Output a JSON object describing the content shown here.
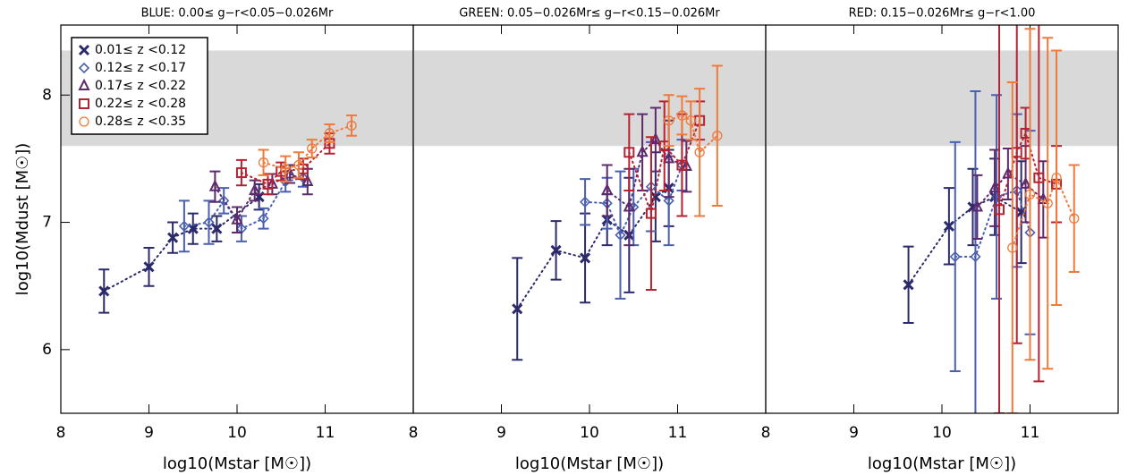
{
  "chart_data": [
    {
      "type": "scatter",
      "title": "BLUE: 0.00≤ g−r<0.05−0.026Mr",
      "xlabel": "log10(Mstar [M☉])",
      "ylabel": "log10(Mdust [M☉])",
      "xlim": [
        8,
        12
      ],
      "ylim": [
        5.5,
        8.55
      ],
      "xticks": [
        8,
        9,
        10,
        11
      ],
      "yticks": [
        6,
        7,
        8
      ],
      "shade_ylim": [
        7.6,
        8.35
      ],
      "legend": "upper left",
      "linestyle": "dotted",
      "series": [
        {
          "name": "0.01≤ z <0.12",
          "color": "#2b2a6b",
          "marker": "x",
          "x": [
            8.49,
            9.0,
            9.27,
            9.5,
            9.77,
            10.25
          ],
          "values": [
            6.46,
            6.65,
            6.88,
            6.95,
            6.95,
            7.2
          ],
          "errors": [
            0.17,
            0.15,
            0.12,
            0.12,
            0.1,
            0.1
          ]
        },
        {
          "name": "0.12≤ z <0.17",
          "color": "#4a5fb0",
          "marker": "diamond",
          "x": [
            9.4,
            9.68,
            9.85,
            10.05,
            10.3,
            10.55,
            10.75
          ],
          "values": [
            6.97,
            7.0,
            7.17,
            6.95,
            7.03,
            7.32,
            7.35
          ],
          "errors": [
            0.2,
            0.17,
            0.1,
            0.1,
            0.08,
            0.08,
            0.07
          ]
        },
        {
          "name": "0.17≤ z <0.22",
          "color": "#5e2a6e",
          "marker": "triangle",
          "x": [
            9.75,
            10.0,
            10.2,
            10.4,
            10.6,
            10.8
          ],
          "values": [
            7.28,
            7.02,
            7.25,
            7.3,
            7.38,
            7.32
          ],
          "errors": [
            0.12,
            0.1,
            0.08,
            0.08,
            0.07,
            0.1
          ]
        },
        {
          "name": "0.22≤ z <0.28",
          "color": "#b52232",
          "marker": "square",
          "x": [
            10.05,
            10.35,
            10.5,
            10.75,
            11.05
          ],
          "values": [
            7.39,
            7.3,
            7.4,
            7.42,
            7.62
          ],
          "errors": [
            0.1,
            0.08,
            0.07,
            0.08,
            0.08
          ]
        },
        {
          "name": "0.28≤ z <0.35",
          "color": "#f07a3a",
          "marker": "circle",
          "x": [
            10.3,
            10.55,
            10.7,
            10.85,
            11.05,
            11.3
          ],
          "values": [
            7.47,
            7.42,
            7.45,
            7.58,
            7.7,
            7.76
          ],
          "errors": [
            0.1,
            0.1,
            0.1,
            0.07,
            0.07,
            0.08
          ]
        }
      ]
    },
    {
      "type": "scatter",
      "title": "GREEN: 0.05−0.026Mr≤ g−r<0.15−0.026Mr",
      "xlabel": "log10(Mstar [M☉])",
      "xlim": [
        8,
        12
      ],
      "ylim": [
        5.5,
        8.55
      ],
      "xticks": [
        8,
        9,
        10,
        11
      ],
      "shade_ylim": [
        7.6,
        8.35
      ],
      "linestyle": "dotted",
      "series": [
        {
          "color": "#2b2a6b",
          "marker": "x",
          "x": [
            9.18,
            9.62,
            9.95,
            10.2,
            10.45,
            10.75,
            10.9
          ],
          "values": [
            6.32,
            6.78,
            6.72,
            7.02,
            6.9,
            7.2,
            7.27
          ],
          "errors": [
            0.4,
            0.23,
            0.35,
            0.2,
            0.45,
            0.35,
            0.3
          ]
        },
        {
          "color": "#4a5fb0",
          "marker": "diamond",
          "x": [
            9.95,
            10.2,
            10.35,
            10.5,
            10.7,
            10.9,
            11.05
          ],
          "values": [
            7.16,
            7.15,
            6.9,
            7.12,
            7.28,
            7.17,
            7.45
          ],
          "errors": [
            0.18,
            0.2,
            0.5,
            0.3,
            0.35,
            0.35,
            0.2
          ]
        },
        {
          "color": "#5e2a6e",
          "marker": "triangle",
          "x": [
            10.2,
            10.45,
            10.6,
            10.75,
            10.9,
            11.1
          ],
          "values": [
            7.25,
            7.12,
            7.55,
            7.65,
            7.5,
            7.44
          ],
          "errors": [
            0.2,
            0.3,
            0.3,
            0.25,
            0.3,
            0.2
          ]
        },
        {
          "color": "#b52232",
          "marker": "square",
          "x": [
            10.45,
            10.7,
            10.85,
            11.05,
            11.25
          ],
          "values": [
            7.55,
            7.07,
            7.6,
            7.45,
            7.8
          ],
          "errors": [
            0.3,
            0.6,
            0.35,
            0.4,
            0.15
          ]
        },
        {
          "color": "#f07a3a",
          "marker": "circle",
          "x": [
            10.9,
            11.05,
            11.15,
            11.25,
            11.45
          ],
          "values": [
            7.8,
            7.84,
            7.8,
            7.55,
            7.68
          ],
          "errors": [
            0.2,
            0.15,
            0.15,
            0.5,
            0.55
          ]
        }
      ]
    },
    {
      "type": "scatter",
      "title": "RED: 0.15−0.026Mr≤ g−r<1.00",
      "xlabel": "log10(Mstar [M☉])",
      "xlim": [
        8,
        12
      ],
      "ylim": [
        5.5,
        8.55
      ],
      "xticks": [
        8,
        9,
        10,
        11
      ],
      "shade_ylim": [
        7.6,
        8.35
      ],
      "linestyle": "dotted",
      "series": [
        {
          "color": "#2b2a6b",
          "marker": "x",
          "x": [
            9.62,
            10.08,
            10.35,
            10.6,
            10.9
          ],
          "values": [
            6.51,
            6.97,
            7.12,
            7.2,
            7.08
          ],
          "errors": [
            0.3,
            0.3,
            0.3,
            0.3,
            0.4
          ]
        },
        {
          "color": "#4a5fb0",
          "marker": "diamond",
          "x": [
            10.15,
            10.38,
            10.62,
            10.85,
            11.0
          ],
          "values": [
            6.73,
            6.73,
            7.2,
            7.25,
            6.92
          ],
          "errors": [
            0.9,
            1.3,
            0.8,
            0.6,
            0.8
          ]
        },
        {
          "color": "#5e2a6e",
          "marker": "triangle",
          "x": [
            10.4,
            10.6,
            10.75,
            10.95,
            11.15
          ],
          "values": [
            7.12,
            7.27,
            7.38,
            7.3,
            7.18
          ],
          "errors": [
            0.25,
            0.3,
            0.2,
            0.3,
            0.3
          ]
        },
        {
          "color": "#b52232",
          "marker": "square",
          "x": [
            10.65,
            10.85,
            10.95,
            11.1,
            11.3
          ],
          "values": [
            7.1,
            7.55,
            7.7,
            7.35,
            7.3
          ],
          "errors": [
            1.6,
            1.5,
            0.2,
            1.6,
            0.3
          ]
        },
        {
          "color": "#f07a3a",
          "marker": "circle",
          "x": [
            10.8,
            11.0,
            11.2,
            11.3,
            11.5
          ],
          "values": [
            6.8,
            7.22,
            7.15,
            7.35,
            7.03
          ],
          "errors": [
            1.3,
            1.3,
            1.3,
            1.0,
            0.42
          ]
        }
      ]
    }
  ]
}
